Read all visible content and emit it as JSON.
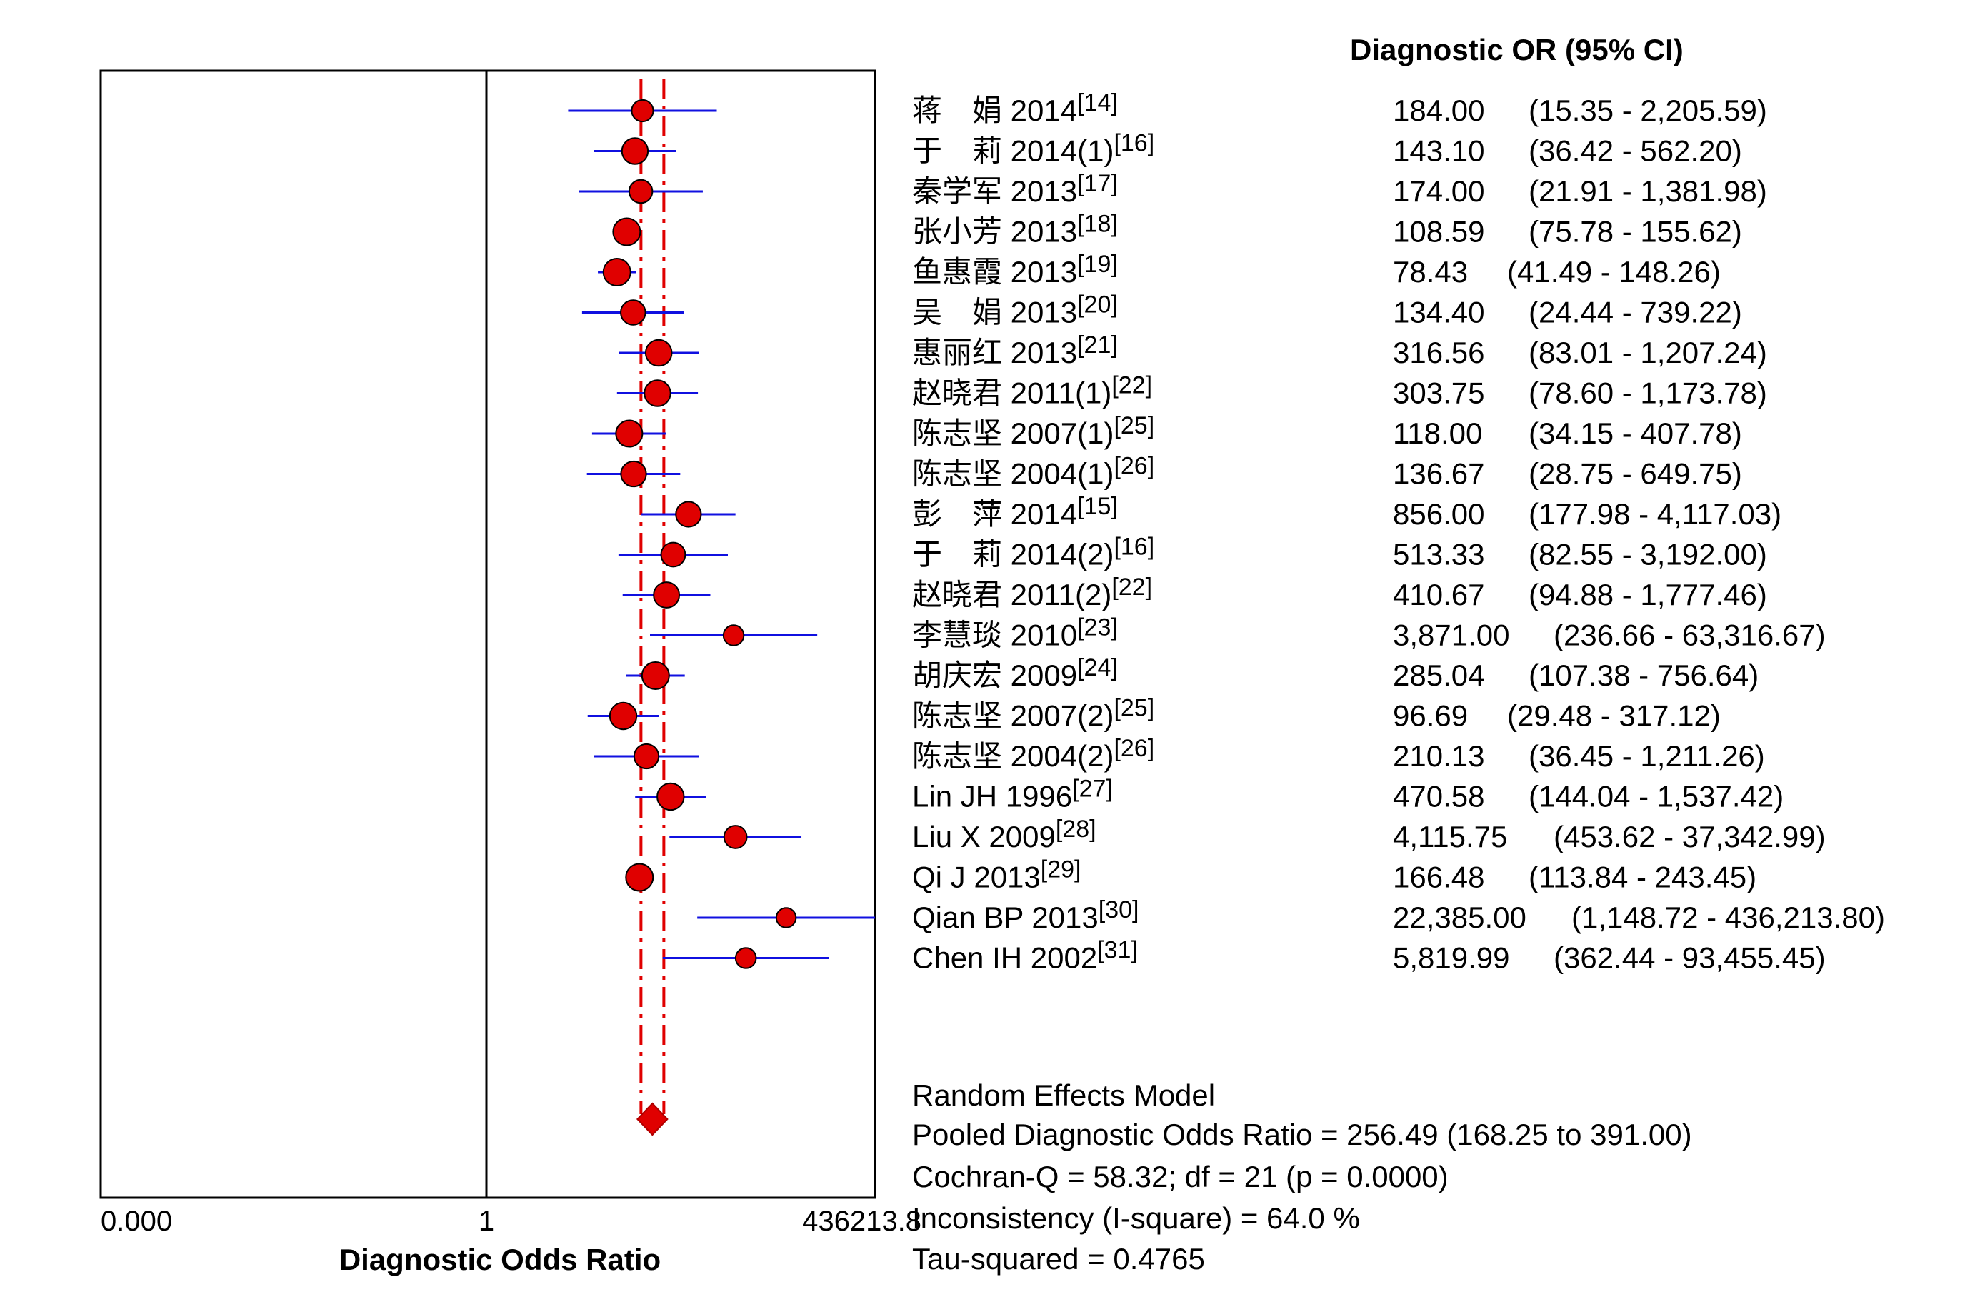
{
  "chart_data": {
    "type": "forest",
    "header": "Diagnostic OR (95% CI)",
    "xlabel": "Diagnostic Odds Ratio",
    "x_scale": "log",
    "x_ticks": [
      "0.000",
      "1",
      "436213.8"
    ],
    "studies": [
      {
        "label": "蒋　娟 2014",
        "ref": "[14]",
        "or": 184.0,
        "lo": 15.35,
        "hi": 2205.59,
        "or_text": "184.00",
        "ci_text": "(15.35 - 2,205.59)"
      },
      {
        "label": "于　莉 2014(1)",
        "ref": "[16]",
        "or": 143.1,
        "lo": 36.42,
        "hi": 562.2,
        "or_text": "143.10",
        "ci_text": "(36.42 - 562.20)"
      },
      {
        "label": "秦学军 2013",
        "ref": "[17]",
        "or": 174.0,
        "lo": 21.91,
        "hi": 1381.98,
        "or_text": "174.00",
        "ci_text": "(21.91 - 1,381.98)"
      },
      {
        "label": "张小芳 2013",
        "ref": "[18]",
        "or": 108.59,
        "lo": 75.78,
        "hi": 155.62,
        "or_text": "108.59",
        "ci_text": "(75.78 - 155.62)"
      },
      {
        "label": "鱼惠霞 2013",
        "ref": "[19]",
        "or": 78.43,
        "lo": 41.49,
        "hi": 148.26,
        "or_text": "78.43",
        "ci_text": "(41.49 - 148.26)"
      },
      {
        "label": "吴　娟 2013",
        "ref": "[20]",
        "or": 134.4,
        "lo": 24.44,
        "hi": 739.22,
        "or_text": "134.40",
        "ci_text": "(24.44 - 739.22)"
      },
      {
        "label": "惠丽红 2013",
        "ref": "[21]",
        "or": 316.56,
        "lo": 83.01,
        "hi": 1207.24,
        "or_text": "316.56",
        "ci_text": "(83.01 - 1,207.24)"
      },
      {
        "label": "赵晓君 2011(1)",
        "ref": "[22]",
        "or": 303.75,
        "lo": 78.6,
        "hi": 1173.78,
        "or_text": "303.75",
        "ci_text": "(78.60 - 1,173.78)"
      },
      {
        "label": "陈志坚 2007(1)",
        "ref": "[25]",
        "or": 118.0,
        "lo": 34.15,
        "hi": 407.78,
        "or_text": "118.00",
        "ci_text": "(34.15 - 407.78)"
      },
      {
        "label": "陈志坚 2004(1)",
        "ref": "[26]",
        "or": 136.67,
        "lo": 28.75,
        "hi": 649.75,
        "or_text": "136.67",
        "ci_text": "(28.75 - 649.75)"
      },
      {
        "label": "彭　萍 2014",
        "ref": "[15]",
        "or": 856.0,
        "lo": 177.98,
        "hi": 4117.03,
        "or_text": "856.00",
        "ci_text": "(177.98 - 4,117.03)"
      },
      {
        "label": "于　莉 2014(2)",
        "ref": "[16]",
        "or": 513.33,
        "lo": 82.55,
        "hi": 3192.0,
        "or_text": "513.33",
        "ci_text": "(82.55 - 3,192.00)"
      },
      {
        "label": "赵晓君 2011(2)",
        "ref": "[22]",
        "or": 410.67,
        "lo": 94.88,
        "hi": 1777.46,
        "or_text": "410.67",
        "ci_text": "(94.88 - 1,777.46)"
      },
      {
        "label": "李慧琰 2010",
        "ref": "[23]",
        "or": 3871.0,
        "lo": 236.66,
        "hi": 63316.67,
        "or_text": "3,871.00",
        "ci_text": "(236.66 - 63,316.67)"
      },
      {
        "label": "胡庆宏 2009",
        "ref": "[24]",
        "or": 285.04,
        "lo": 107.38,
        "hi": 756.64,
        "or_text": "285.04",
        "ci_text": "(107.38 - 756.64)"
      },
      {
        "label": "陈志坚 2007(2)",
        "ref": "[25]",
        "or": 96.69,
        "lo": 29.48,
        "hi": 317.12,
        "or_text": "96.69",
        "ci_text": "(29.48 - 317.12)"
      },
      {
        "label": "陈志坚 2004(2)",
        "ref": "[26]",
        "or": 210.13,
        "lo": 36.45,
        "hi": 1211.26,
        "or_text": "210.13",
        "ci_text": "(36.45 - 1,211.26)"
      },
      {
        "label": "Lin JH 1996",
        "ref": "[27]",
        "or": 470.58,
        "lo": 144.04,
        "hi": 1537.42,
        "or_text": "470.58",
        "ci_text": "(144.04 - 1,537.42)"
      },
      {
        "label": "Liu X 2009",
        "ref": "[28]",
        "or": 4115.75,
        "lo": 453.62,
        "hi": 37342.99,
        "or_text": "4,115.75",
        "ci_text": "(453.62 - 37,342.99)"
      },
      {
        "label": "Qi J 2013",
        "ref": "[29]",
        "or": 166.48,
        "lo": 113.84,
        "hi": 243.45,
        "or_text": "166.48",
        "ci_text": "(113.84 - 243.45)"
      },
      {
        "label": "Qian BP 2013",
        "ref": "[30]",
        "or": 22385.0,
        "lo": 1148.72,
        "hi": 436213.8,
        "or_text": "22,385.00",
        "ci_text": "(1,148.72 - 436,213.80)"
      },
      {
        "label": "Chen IH 2002",
        "ref": "[31]",
        "or": 5819.99,
        "lo": 362.44,
        "hi": 93455.45,
        "or_text": "5,819.99",
        "ci_text": "(362.44 - 93,455.45)"
      }
    ],
    "pooled": {
      "or": 256.49,
      "lo": 168.25,
      "hi": 391.0
    },
    "summary_lines": [
      "Random Effects Model",
      "Pooled Diagnostic Odds Ratio = 256.49 (168.25 to 391.00)",
      "Cochran-Q = 58.32; df =  21 (p = 0.0000)",
      "Inconsistency (I-square) = 64.0 %",
      "Tau-squared = 0.4765"
    ],
    "colors": {
      "ci_line": "#1010e0",
      "point_fill": "#e00000",
      "pooled_line": "#e00000",
      "axis": "#000000"
    }
  }
}
